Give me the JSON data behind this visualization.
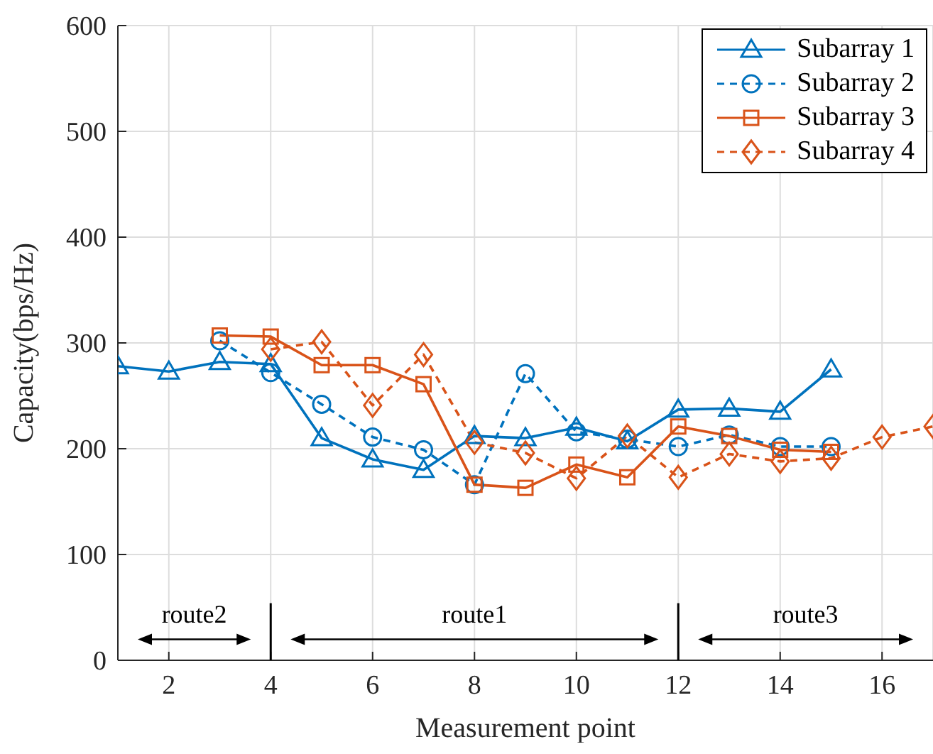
{
  "chart_data": {
    "type": "line",
    "xlabel": "Measurement point",
    "ylabel": "Capacity(bps/Hz)",
    "x": [
      1,
      2,
      3,
      4,
      5,
      6,
      7,
      8,
      9,
      10,
      11,
      12,
      13,
      14,
      15,
      16,
      17
    ],
    "series": [
      {
        "name": "Subarray 1",
        "color": "#0072bd",
        "marker": "triangle",
        "line_style": "solid",
        "values": [
          278,
          273,
          282,
          280,
          210,
          190,
          180,
          212,
          210,
          220,
          207,
          237,
          238,
          235,
          275,
          null,
          null
        ]
      },
      {
        "name": "Subarray 2",
        "color": "#0072bd",
        "marker": "circle",
        "line_style": "dashed",
        "values": [
          null,
          null,
          302,
          272,
          242,
          211,
          199,
          166,
          271,
          216,
          209,
          202,
          213,
          202,
          202,
          null,
          null
        ]
      },
      {
        "name": "Subarray 3",
        "color": "#d95319",
        "marker": "square",
        "line_style": "solid",
        "values": [
          null,
          null,
          307,
          306,
          279,
          279,
          261,
          166,
          163,
          185,
          173,
          221,
          212,
          199,
          197,
          null,
          null
        ]
      },
      {
        "name": "Subarray 4",
        "color": "#d95319",
        "marker": "diamond",
        "line_style": "dashed",
        "values": [
          null,
          null,
          null,
          294,
          301,
          241,
          289,
          206,
          196,
          172,
          212,
          173,
          195,
          188,
          191,
          211,
          221
        ]
      }
    ],
    "xlim": [
      1,
      17
    ],
    "xticks": [
      2,
      4,
      6,
      8,
      10,
      12,
      14,
      16
    ],
    "ylim": [
      0,
      600
    ],
    "yticks": [
      0,
      100,
      200,
      300,
      400,
      500,
      600
    ],
    "grid": true,
    "legend": "top right",
    "ref_lines": [
      {
        "axis": "x",
        "value": 4,
        "color": "#000000"
      },
      {
        "axis": "x",
        "value": 12,
        "color": "#000000"
      }
    ],
    "annotations": [
      "route2",
      "route1",
      "route3"
    ]
  }
}
